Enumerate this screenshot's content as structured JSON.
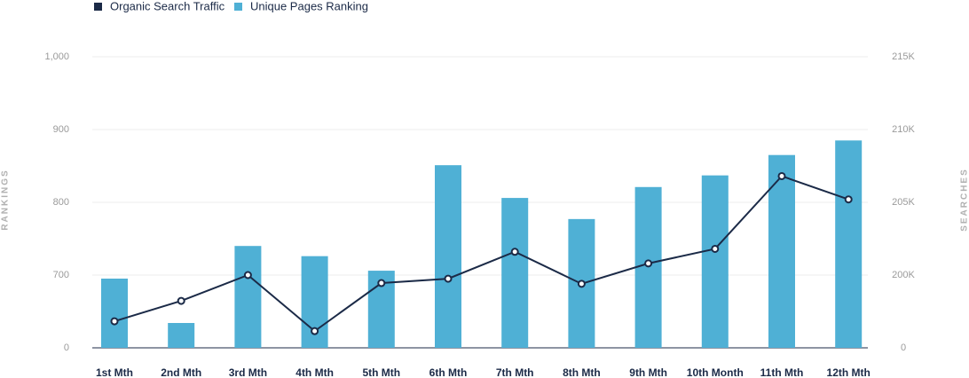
{
  "chart_data": {
    "type": "bar_line",
    "categories": [
      "1st Mth",
      "2nd Mth",
      "3rd Mth",
      "4th Mth",
      "5th Mth",
      "6th Mth",
      "7th Mth",
      "8th Mth",
      "9th Mth",
      "10th Month",
      "11th Mth",
      "12th Mth"
    ],
    "y_label": "RANKINGS",
    "y2_label": "SEARCHES",
    "series": [
      {
        "name": "Organic Search Traffic",
        "color": "#1b2a47",
        "type": "line",
        "axis": "y2",
        "values": [
          73000,
          129000,
          200000,
          46000,
          178000,
          190000,
          201600,
          176000,
          200800,
          201800,
          206800,
          205200
        ]
      },
      {
        "name": "Unique Pages Ranking",
        "color": "#4fb0d5",
        "type": "bar",
        "axis": "y",
        "values": [
          666,
          239,
          740,
          726,
          706,
          851,
          806,
          777,
          821,
          837,
          865,
          885
        ]
      }
    ],
    "ylim": [
      0,
      1000
    ],
    "yticks": [
      0,
      700,
      800,
      900,
      {
        "value": 1000,
        "label": "1,000"
      }
    ],
    "y2lim": [
      0,
      215000
    ],
    "y2ticks": [
      0,
      {
        "value": 200000,
        "label": "200K"
      },
      {
        "value": 205000,
        "label": "205K"
      },
      {
        "value": 210000,
        "label": "210K"
      },
      {
        "value": 215000,
        "label": "215K"
      }
    ],
    "grid": true,
    "legend": "top-left"
  }
}
